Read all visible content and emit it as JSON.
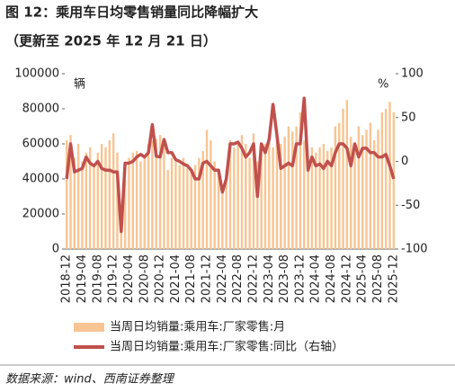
{
  "chart_data": {
    "type": "combo",
    "title": "图 12：乘用车日均零售销量同比降幅扩大",
    "subtitle": "（更新至 2025 年 12 月 21 日）",
    "y_unit": "辆",
    "y2_unit": "%",
    "source": "数据来源：wind、西南证券整理",
    "categories": [
      "2018-12",
      null,
      null,
      null,
      "2019-04",
      null,
      null,
      null,
      "2019-08",
      null,
      null,
      null,
      "2019-12",
      null,
      null,
      null,
      "2020-04",
      null,
      null,
      null,
      "2020-08",
      null,
      null,
      null,
      "2020-12",
      null,
      null,
      null,
      "2021-04",
      null,
      null,
      null,
      "2021-08",
      null,
      null,
      null,
      "2021-12",
      null,
      null,
      null,
      "2022-04",
      null,
      null,
      null,
      "2022-08",
      null,
      null,
      null,
      "2022-12",
      null,
      null,
      null,
      "2023-04",
      null,
      null,
      null,
      "2023-08",
      null,
      null,
      null,
      "2023-12",
      null,
      null,
      null,
      "2024-04",
      null,
      null,
      null,
      "2024-08",
      null,
      null,
      null,
      "2024-12",
      null,
      null,
      null,
      "2025-04",
      null,
      null,
      null,
      "2025-08",
      null,
      null,
      null,
      "2025-12"
    ],
    "ylim": [
      0,
      100000
    ],
    "yticks": [
      0,
      20000,
      40000,
      60000,
      80000,
      100000
    ],
    "y2lim": [
      -100,
      100
    ],
    "y2ticks": [
      -100,
      -50,
      0,
      50,
      100
    ],
    "grid": false,
    "series": [
      {
        "name": "当周日均销量:乘用车:厂家零售:月",
        "type": "bar",
        "color": "#f7c594",
        "values": [
          62000,
          65000,
          52000,
          60000,
          50000,
          55000,
          58000,
          48000,
          55000,
          60000,
          58000,
          62000,
          66000,
          55000,
          20000,
          40000,
          52000,
          55000,
          56000,
          50000,
          52000,
          60000,
          62000,
          63000,
          65000,
          58000,
          45000,
          52000,
          50000,
          48000,
          52000,
          46000,
          44000,
          48000,
          52000,
          56000,
          68000,
          62000,
          50000,
          45000,
          36000,
          45000,
          62000,
          58000,
          60000,
          65000,
          60000,
          52000,
          66000,
          50000,
          55000,
          60000,
          62000,
          58000,
          66000,
          60000,
          64000,
          70000,
          67000,
          70000,
          78000,
          62000,
          45000,
          58000,
          55000,
          58000,
          60000,
          56000,
          58000,
          70000,
          72000,
          80000,
          85000,
          64000,
          55000,
          70000,
          65000,
          68000,
          72000,
          62000,
          68000,
          78000,
          80000,
          84000,
          78000
        ]
      },
      {
        "name": "当周日均销量:乘用车:厂家零售:同比（右轴）",
        "type": "line",
        "axis": "y2",
        "color": "#c0504d",
        "values": [
          -20,
          20,
          -12,
          -10,
          -8,
          5,
          -2,
          -5,
          0,
          -8,
          -10,
          -10,
          -12,
          -12,
          -80,
          -2,
          -2,
          0,
          5,
          8,
          5,
          10,
          42,
          6,
          5,
          25,
          10,
          10,
          2,
          0,
          -3,
          -5,
          -10,
          -20,
          -20,
          -2,
          0,
          -5,
          -10,
          -10,
          -35,
          -20,
          20,
          20,
          22,
          15,
          5,
          10,
          20,
          -40,
          20,
          10,
          25,
          65,
          30,
          -8,
          -5,
          -2,
          -5,
          20,
          20,
          72,
          -10,
          5,
          -5,
          -3,
          -8,
          0,
          -5,
          10,
          20,
          20,
          15,
          -5,
          20,
          5,
          15,
          15,
          10,
          10,
          5,
          5,
          8,
          -5,
          -20
        ]
      }
    ]
  }
}
